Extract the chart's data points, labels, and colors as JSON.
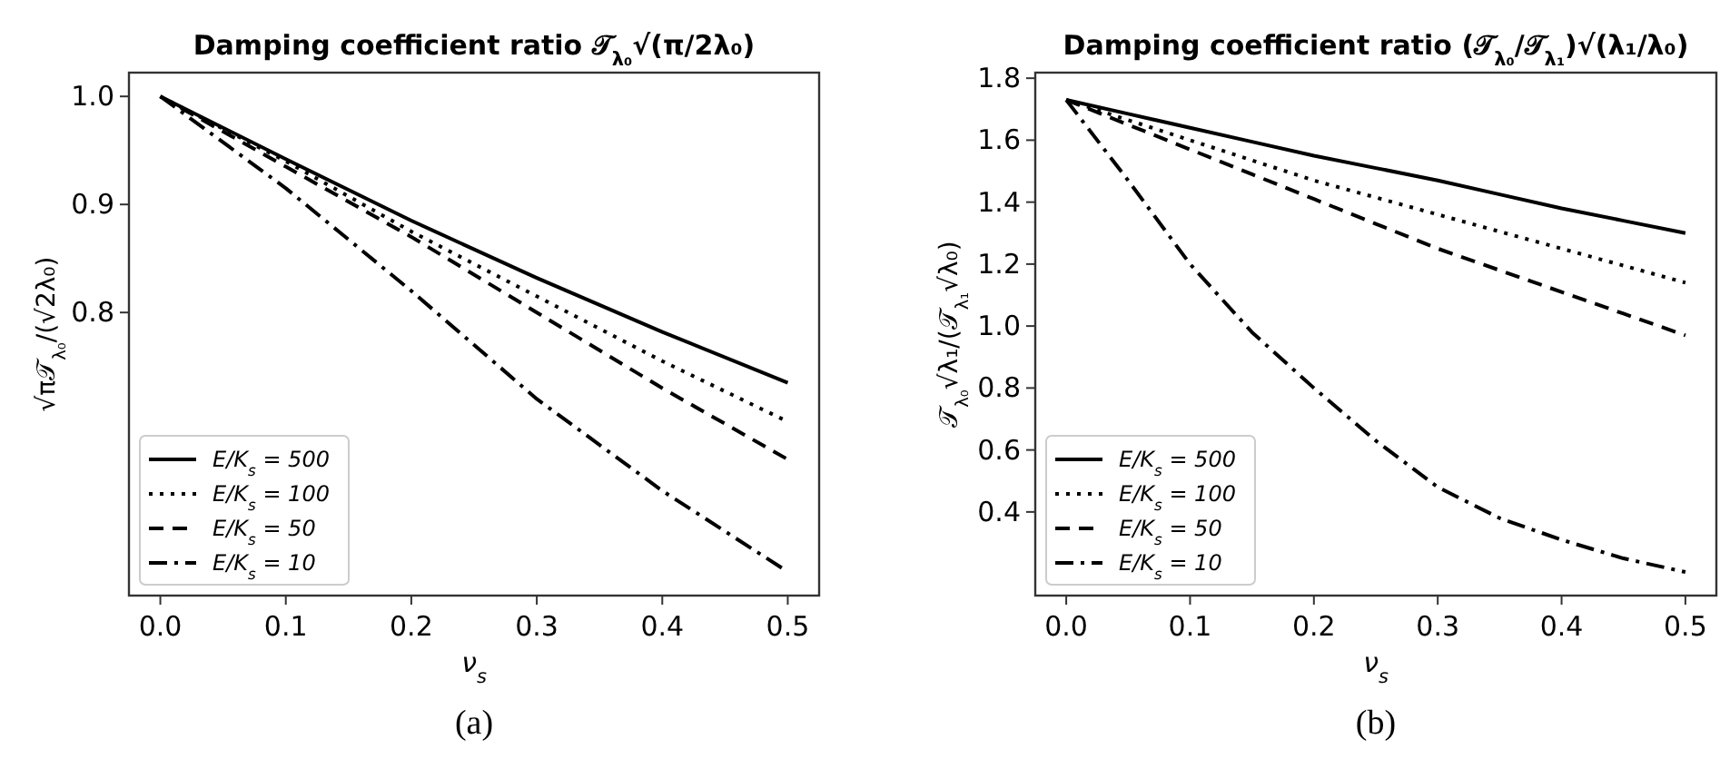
{
  "chart_data": [
    {
      "type": "line",
      "title": "Damping coefficient ratio 𝒯$_{λ₀}$√(π/2λ₀)",
      "xlabel": "ν$_{s}$",
      "ylabel": "√π𝒯$_{λ₀}$/(√2λ₀)",
      "annotations": [
        "(a)"
      ],
      "x": [
        0,
        0.1,
        0.2,
        0.3,
        0.4,
        0.5
      ],
      "xlim": [
        -0.025,
        0.525
      ],
      "xticks": [
        {
          "value": 0,
          "label": "0.0"
        },
        0.1,
        0.2,
        0.3,
        0.4,
        0.5
      ],
      "ylim": [
        0.538,
        1.022
      ],
      "yticks": [
        0.8,
        0.9,
        {
          "value": 1,
          "label": "1.0"
        }
      ],
      "grid": false,
      "legend": "bottom left",
      "marker": "none",
      "series": [
        {
          "name": "E/K$_{s}$ = 500",
          "color": "#000000",
          "line_style": "solid",
          "values": [
            1,
            0.942,
            0.885,
            0.832,
            0.782,
            0.735
          ]
        },
        {
          "name": "E/K$_{s}$ = 100",
          "color": "#000000",
          "line_style": "dotted",
          "values": [
            1,
            0.94,
            0.875,
            0.815,
            0.755,
            0.699
          ]
        },
        {
          "name": "E/K$_{s}$ = 50",
          "color": "#000000",
          "line_style": "dashed",
          "values": [
            1,
            0.935,
            0.87,
            0.8,
            0.73,
            0.664
          ]
        },
        {
          "name": "E/K$_{s}$ = 10",
          "color": "#000000",
          "line_style": "dashdot",
          "values": [
            1,
            0.915,
            0.82,
            0.72,
            0.635,
            0.56
          ]
        }
      ]
    },
    {
      "type": "line",
      "title": "Damping coefficient ratio (𝒯$_{λ₀}$/𝒯$_{λ₁}$)√(λ₁/λ₀)",
      "xlabel": "ν$_{s}$",
      "ylabel": "𝒯$_{λ₀}$√λ₁/(𝒯$_{λ₁}$√λ₀)",
      "annotations": [
        "(b)"
      ],
      "x": [
        0,
        0.05,
        0.1,
        0.15,
        0.2,
        0.25,
        0.3,
        0.35,
        0.4,
        0.45,
        0.5
      ],
      "xlim": [
        -0.025,
        0.525
      ],
      "xticks": [
        {
          "value": 0,
          "label": "0.0"
        },
        0.1,
        0.2,
        0.3,
        0.4,
        0.5
      ],
      "ylim": [
        0.13,
        1.818
      ],
      "yticks": [
        0.4,
        0.6,
        0.8,
        {
          "value": 1,
          "label": "1.0"
        },
        1.2,
        1.4,
        1.6,
        1.8
      ],
      "grid": false,
      "legend": "bottom left",
      "marker": "none",
      "series": [
        {
          "name": "E/K$_{s}$ = 500",
          "color": "#000000",
          "line_style": "solid",
          "values": [
            1.73,
            1.685,
            1.64,
            1.595,
            1.55,
            1.51,
            1.47,
            1.425,
            1.38,
            1.34,
            1.3
          ]
        },
        {
          "name": "E/K$_{s}$ = 100",
          "color": "#000000",
          "line_style": "dotted",
          "values": [
            1.73,
            1.665,
            1.6,
            1.535,
            1.47,
            1.415,
            1.36,
            1.305,
            1.25,
            1.195,
            1.14
          ]
        },
        {
          "name": "E/K$_{s}$ = 50",
          "color": "#000000",
          "line_style": "dashed",
          "values": [
            1.73,
            1.65,
            1.57,
            1.49,
            1.41,
            1.33,
            1.25,
            1.18,
            1.11,
            1.04,
            0.97
          ]
        },
        {
          "name": "E/K$_{s}$ = 10",
          "color": "#000000",
          "line_style": "dashdot",
          "values": [
            1.73,
            1.47,
            1.2,
            0.98,
            0.8,
            0.63,
            0.48,
            0.38,
            0.31,
            0.25,
            0.206
          ]
        }
      ]
    }
  ]
}
